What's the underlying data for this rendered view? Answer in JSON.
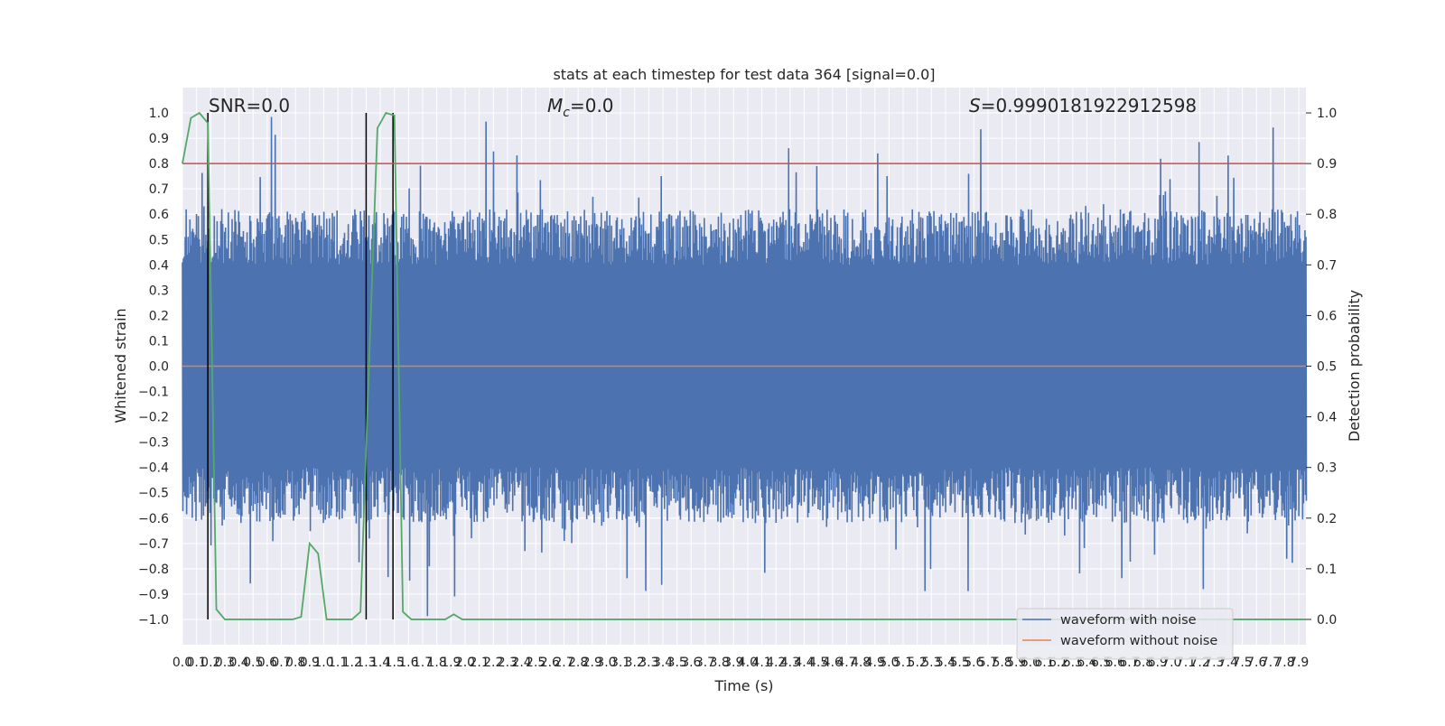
{
  "chart_data": {
    "type": "line",
    "title": "stats at each timestep for test data 364 [signal=0.0]",
    "xlabel": "Time (s)",
    "ylabel": "Whitened strain",
    "ylabel_right": "Detection probability",
    "xlim": [
      0.0,
      7.95
    ],
    "ylim": [
      -1.1,
      1.1
    ],
    "ylim_right": [
      -0.05,
      1.05
    ],
    "grid": true,
    "legend_position": "lower right",
    "annotations": {
      "snr": "SNR=0.0",
      "mc_symbol": "M",
      "mc_sub": "c",
      "mc_value": "=0.0",
      "s_symbol": "S",
      "s_value": "=0.9990181922912598"
    },
    "x_ticks": [
      0.0,
      0.1,
      0.2,
      0.3,
      0.4,
      0.5,
      0.6,
      0.7,
      0.8,
      0.9,
      1.0,
      1.1,
      1.2,
      1.3,
      1.4,
      1.5,
      1.6,
      1.7,
      1.8,
      1.9,
      2.0,
      2.1,
      2.2,
      2.3,
      2.4,
      2.5,
      2.6,
      2.7,
      2.8,
      2.9,
      3.0,
      3.1,
      3.2,
      3.3,
      3.4,
      3.5,
      3.6,
      3.7,
      3.8,
      3.9,
      4.0,
      4.1,
      4.2,
      4.3,
      4.4,
      4.5,
      4.6,
      4.7,
      4.8,
      4.9,
      5.0,
      5.1,
      5.2,
      5.3,
      5.4,
      5.5,
      5.6,
      5.7,
      5.8,
      5.9,
      6.0,
      6.1,
      6.2,
      6.3,
      6.4,
      6.5,
      6.6,
      6.7,
      6.8,
      6.9,
      7.0,
      7.1,
      7.2,
      7.3,
      7.4,
      7.5,
      7.6,
      7.7,
      7.8,
      7.9
    ],
    "y_ticks": [
      -1.0,
      -0.9,
      -0.8,
      -0.7,
      -0.6,
      -0.5,
      -0.4,
      -0.3,
      -0.2,
      -0.1,
      0.0,
      0.1,
      0.2,
      0.3,
      0.4,
      0.5,
      0.6,
      0.7,
      0.8,
      0.9,
      1.0
    ],
    "y_ticks_right": [
      0.0,
      0.1,
      0.2,
      0.3,
      0.4,
      0.5,
      0.6,
      0.7,
      0.8,
      0.9,
      1.0
    ],
    "threshold": {
      "value": 0.9,
      "axis": "right",
      "color": "#c44e52"
    },
    "vertical_markers": [
      0.18,
      1.3,
      1.49
    ],
    "series": [
      {
        "name": "waveform with noise",
        "color": "#4c72b0",
        "axis": "left",
        "x_range": [
          0.0,
          7.95
        ],
        "samples": 1200,
        "approx_envelope": {
          "typical_max": 0.4,
          "peak_max": 1.0,
          "typical_min": -0.4,
          "peak_min": -1.0
        }
      },
      {
        "name": "waveform without noise",
        "color": "#dd8452",
        "axis": "left",
        "x": [
          0.0,
          7.95
        ],
        "y": [
          0.0,
          0.0
        ]
      },
      {
        "color": "#55a868",
        "axis": "right",
        "x": [
          0.0,
          0.06,
          0.12,
          0.18,
          0.24,
          0.3,
          0.36,
          0.42,
          0.48,
          0.54,
          0.6,
          0.66,
          0.72,
          0.78,
          0.84,
          0.9,
          0.96,
          1.02,
          1.08,
          1.14,
          1.2,
          1.26,
          1.32,
          1.38,
          1.44,
          1.5,
          1.56,
          1.62,
          1.68,
          1.74,
          1.8,
          1.86,
          1.92,
          1.98,
          2.04,
          2.1,
          7.95
        ],
        "y": [
          0.9,
          0.99,
          1.0,
          0.98,
          0.02,
          0.0,
          0.0,
          0.0,
          0.0,
          0.0,
          0.0,
          0.0,
          0.0,
          0.0,
          0.005,
          0.15,
          0.13,
          0.0,
          0.0,
          0.0,
          0.0,
          0.015,
          0.5,
          0.97,
          1.0,
          0.995,
          0.015,
          0.0,
          0.0,
          0.0,
          0.0,
          0.0,
          0.01,
          0.0,
          0.0,
          0.0,
          0.0
        ]
      }
    ]
  }
}
